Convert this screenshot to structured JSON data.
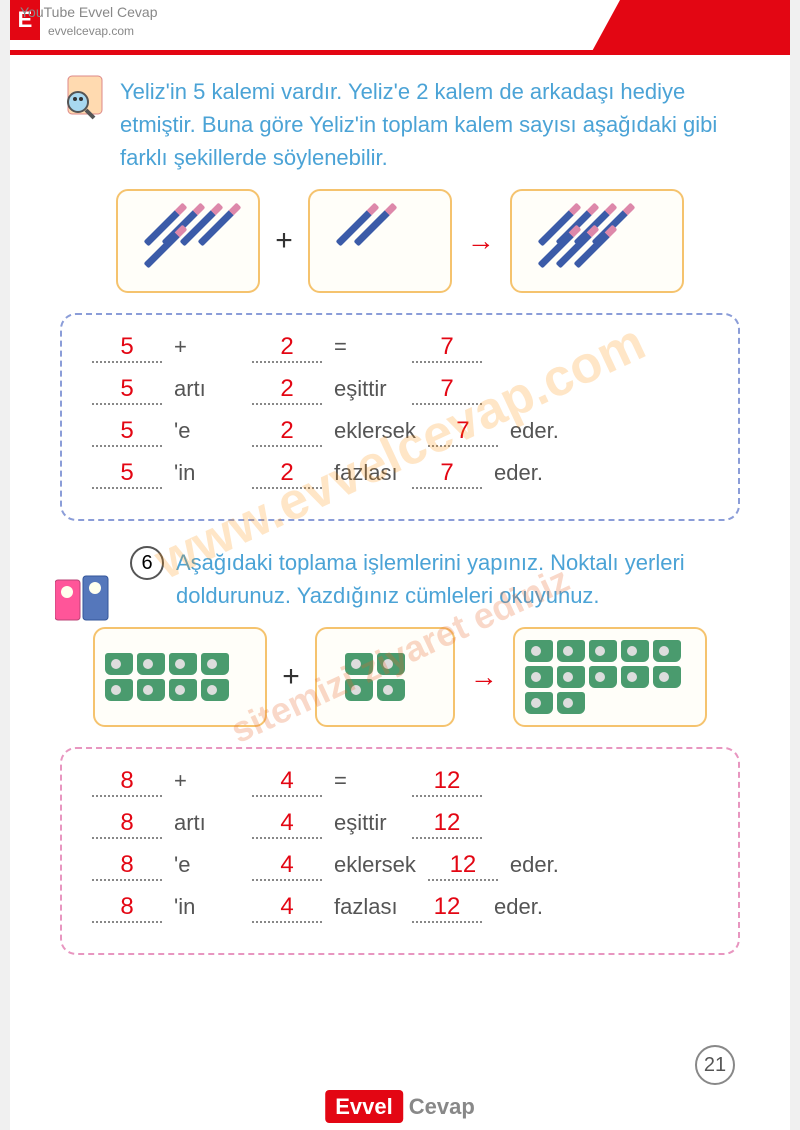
{
  "header": {
    "badge": "E",
    "watermark_main": "YouTube Evvel Cevap",
    "watermark_sub": "evvelcevap.com"
  },
  "problem1": {
    "text": "Yeliz'in 5 kalemi vardır. Yeliz'e 2 kalem de arkadaşı hediye etmiştir. Buna göre Yeliz'in toplam kalem sayısı aşağıdaki gibi farklı şekillerde söylenebilir.",
    "visual": {
      "box1_count": 5,
      "box2_count": 2,
      "box3_count": 7,
      "op": "+",
      "item_type": "pencil",
      "item_color": "#3b5ba8"
    },
    "answers": {
      "border_color": "#8b9dd8",
      "rows": [
        {
          "a": "5",
          "w1": "+",
          "b": "2",
          "w2": "=",
          "c": "7",
          "w3": ""
        },
        {
          "a": "5",
          "w1": "artı",
          "b": "2",
          "w2": "eşittir",
          "c": "7",
          "w3": ""
        },
        {
          "a": "5",
          "w1": "'e",
          "b": "2",
          "w2": "eklersek",
          "c": "7",
          "w3": "eder."
        },
        {
          "a": "5",
          "w1": "'in",
          "b": "2",
          "w2": "fazlası",
          "c": "7",
          "w3": "eder."
        }
      ]
    }
  },
  "problem2": {
    "number": "6",
    "text": "Aşağıdaki toplama işlemlerini yapınız. Noktalı yerleri doldurunuz. Yazdığınız cümleleri okuyunuz.",
    "visual": {
      "box1_count": 8,
      "box2_count": 4,
      "box3_count": 12,
      "op": "+",
      "item_type": "sharpener",
      "item_color": "#4a9b6e"
    },
    "answers": {
      "border_color": "#e896c0",
      "rows": [
        {
          "a": "8",
          "w1": "+",
          "b": "4",
          "w2": "=",
          "c": "12",
          "w3": ""
        },
        {
          "a": "8",
          "w1": "artı",
          "b": "4",
          "w2": "eşittir",
          "c": "12",
          "w3": ""
        },
        {
          "a": "8",
          "w1": "'e",
          "b": "4",
          "w2": "eklersek",
          "c": "12",
          "w3": "eder."
        },
        {
          "a": "8",
          "w1": "'in",
          "b": "4",
          "w2": "fazlası",
          "c": "12",
          "w3": "eder."
        }
      ]
    }
  },
  "page_number": "21",
  "footer": {
    "part1": "Evvel",
    "part2": "Cevap"
  },
  "watermarks": {
    "diag1": "www.evvelcevap.com",
    "diag2": "sitemizi ziyaret ediniz"
  },
  "colors": {
    "accent_red": "#e30613",
    "text_blue": "#4ba3d6",
    "box_border": "#f5c36e",
    "answer_red": "#e30613"
  }
}
